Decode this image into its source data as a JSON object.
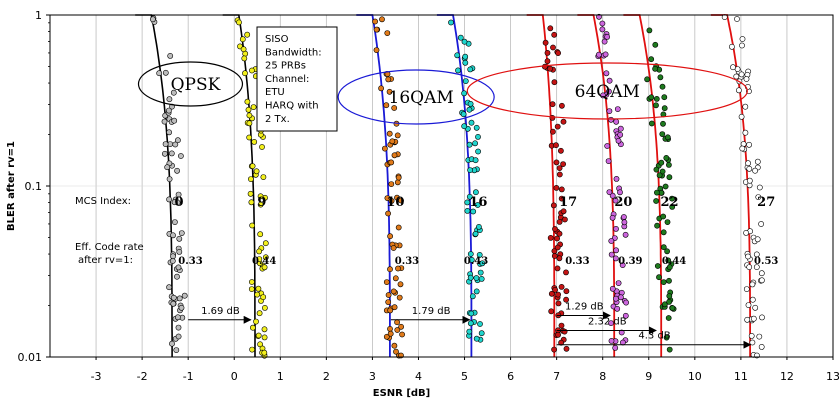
{
  "chart_data": {
    "type": "scatter",
    "title": "",
    "xlabel": "ESNR [dB]",
    "ylabel": "BLER after rv=1",
    "xlim": [
      -4,
      13
    ],
    "ylim": [
      0.01,
      1
    ],
    "yscale": "log",
    "x_ticks": [
      "-3",
      "-2",
      "-1",
      "0",
      "1",
      "2",
      "3",
      "4",
      "5",
      "6",
      "7",
      "8",
      "9",
      "10",
      "11",
      "12",
      "13"
    ],
    "y_ticks": [
      "0.01",
      "0.1",
      "1"
    ],
    "grid": "vertical",
    "config_box": [
      "SISO",
      "Bandwidth:",
      "25 PRBs",
      "Channel:",
      "ETU",
      "HARQ with",
      "2 Tx."
    ],
    "row_labels": {
      "mcs": "MCS Index:",
      "rate_line1": "Eff. Code rate",
      "rate_line2": "after rv=1:"
    },
    "groups": [
      {
        "name": "QPSK",
        "color": "#000000"
      },
      {
        "name": "16QAM",
        "color": "#1a1ad6"
      },
      {
        "name": "64QAM",
        "color": "#e01010"
      }
    ],
    "series": [
      {
        "mcs": "0",
        "rate": "0.33",
        "group": "QPSK",
        "fill": "#bdbdbd",
        "curve_color": "#000000",
        "x_top": -1.8,
        "x_bottom": -1.35
      },
      {
        "mcs": "9",
        "rate": "0.44",
        "group": "QPSK",
        "fill": "#f2ef1c",
        "curve_color": "#000000",
        "x_top": 0.1,
        "x_bottom": 0.45
      },
      {
        "mcs": "10",
        "rate": "0.33",
        "group": "16QAM",
        "fill": "#e07a1a",
        "curve_color": "#1a1ad6",
        "x_top": 3.0,
        "x_bottom": 3.38
      },
      {
        "mcs": "16",
        "rate": "0.43",
        "group": "16QAM",
        "fill": "#20d4cc",
        "curve_color": "#1a1ad6",
        "x_top": 4.75,
        "x_bottom": 5.15
      },
      {
        "mcs": "17",
        "rate": "0.33",
        "group": "64QAM",
        "fill": "#c41414",
        "curve_color": "#e01010",
        "x_top": 6.7,
        "x_bottom": 6.95
      },
      {
        "mcs": "20",
        "rate": "0.39",
        "group": "64QAM",
        "fill": "#cc66dd",
        "curve_color": "#e01010",
        "x_top": 7.8,
        "x_bottom": 8.25
      },
      {
        "mcs": "22",
        "rate": "0.44",
        "group": "64QAM",
        "fill": "#1e7a1e",
        "curve_color": "#e01010",
        "x_top": 8.8,
        "x_bottom": 9.27
      },
      {
        "mcs": "27",
        "rate": "0.53",
        "group": "64QAM",
        "fill": "#ffffff",
        "curve_color": "#e01010",
        "x_top": 10.7,
        "x_bottom": 11.2
      }
    ],
    "annotations": [
      {
        "text": "1.69 dB",
        "from_x": -1.0,
        "to_x": 0.4,
        "bler": 0.0165
      },
      {
        "text": "1.79 dB",
        "from_x": 3.4,
        "to_x": 5.15,
        "bler": 0.0165
      },
      {
        "text": "1.29 dB",
        "from_x": 7.0,
        "to_x": 8.2,
        "bler": 0.0175
      },
      {
        "text": "2.32 dB",
        "from_x": 7.0,
        "to_x": 9.2,
        "bler": 0.0143
      },
      {
        "text": "4.3 dB",
        "from_x": 7.0,
        "to_x": 11.25,
        "bler": 0.0118
      }
    ]
  }
}
